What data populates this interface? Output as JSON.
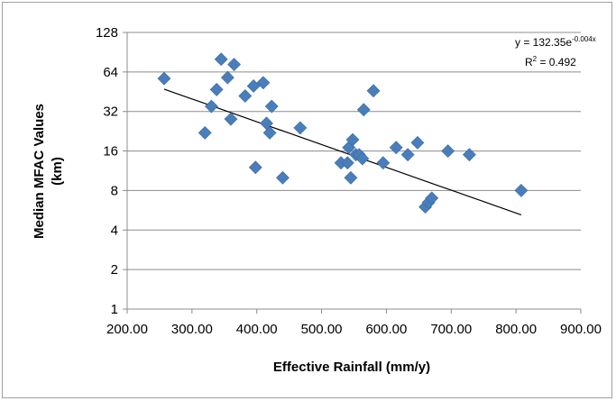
{
  "chart_data": {
    "type": "scatter",
    "title": "",
    "xlabel": "Effective Rainfall (mm/y)",
    "ylabel_line1": "Median MFAC Values",
    "ylabel_line2": "(km)",
    "xlim": [
      200,
      900
    ],
    "ylim": [
      1,
      128
    ],
    "y_scale": "log2",
    "grid": "horizontal",
    "x_ticks": [
      "200.00",
      "300.00",
      "400.00",
      "500.00",
      "600.00",
      "700.00",
      "800.00",
      "900.00"
    ],
    "y_ticks": [
      "1",
      "2",
      "4",
      "8",
      "16",
      "32",
      "64",
      "128"
    ],
    "marker": "diamond",
    "marker_color": "#4a7ebb",
    "trendline": {
      "type": "exponential",
      "equation_prefix": "y = 132.35e",
      "equation_exponent": "-0.004x",
      "r2_prefix": "R",
      "r2_sup": "2",
      "r2_suffix": " = 0.492",
      "a": 132.35,
      "b": -0.004,
      "x_range": [
        257,
        808
      ],
      "color": "#000000"
    },
    "points": [
      {
        "x": 257,
        "y": 57
      },
      {
        "x": 320,
        "y": 22
      },
      {
        "x": 330,
        "y": 35
      },
      {
        "x": 338,
        "y": 47
      },
      {
        "x": 345,
        "y": 80
      },
      {
        "x": 355,
        "y": 58
      },
      {
        "x": 360,
        "y": 28
      },
      {
        "x": 365,
        "y": 73
      },
      {
        "x": 382,
        "y": 42
      },
      {
        "x": 395,
        "y": 50
      },
      {
        "x": 398,
        "y": 12
      },
      {
        "x": 410,
        "y": 53
      },
      {
        "x": 415,
        "y": 26
      },
      {
        "x": 420,
        "y": 22
      },
      {
        "x": 423,
        "y": 35
      },
      {
        "x": 440,
        "y": 10
      },
      {
        "x": 467,
        "y": 24
      },
      {
        "x": 530,
        "y": 13
      },
      {
        "x": 540,
        "y": 13
      },
      {
        "x": 542,
        "y": 17
      },
      {
        "x": 545,
        "y": 10
      },
      {
        "x": 548,
        "y": 19.5
      },
      {
        "x": 553,
        "y": 15
      },
      {
        "x": 558,
        "y": 15
      },
      {
        "x": 563,
        "y": 14
      },
      {
        "x": 565,
        "y": 33
      },
      {
        "x": 580,
        "y": 46
      },
      {
        "x": 595,
        "y": 13
      },
      {
        "x": 615,
        "y": 17
      },
      {
        "x": 633,
        "y": 15
      },
      {
        "x": 648,
        "y": 18.5
      },
      {
        "x": 660,
        "y": 6
      },
      {
        "x": 665,
        "y": 6.5
      },
      {
        "x": 670,
        "y": 7
      },
      {
        "x": 695,
        "y": 16
      },
      {
        "x": 728,
        "y": 15
      },
      {
        "x": 808,
        "y": 8
      }
    ]
  }
}
